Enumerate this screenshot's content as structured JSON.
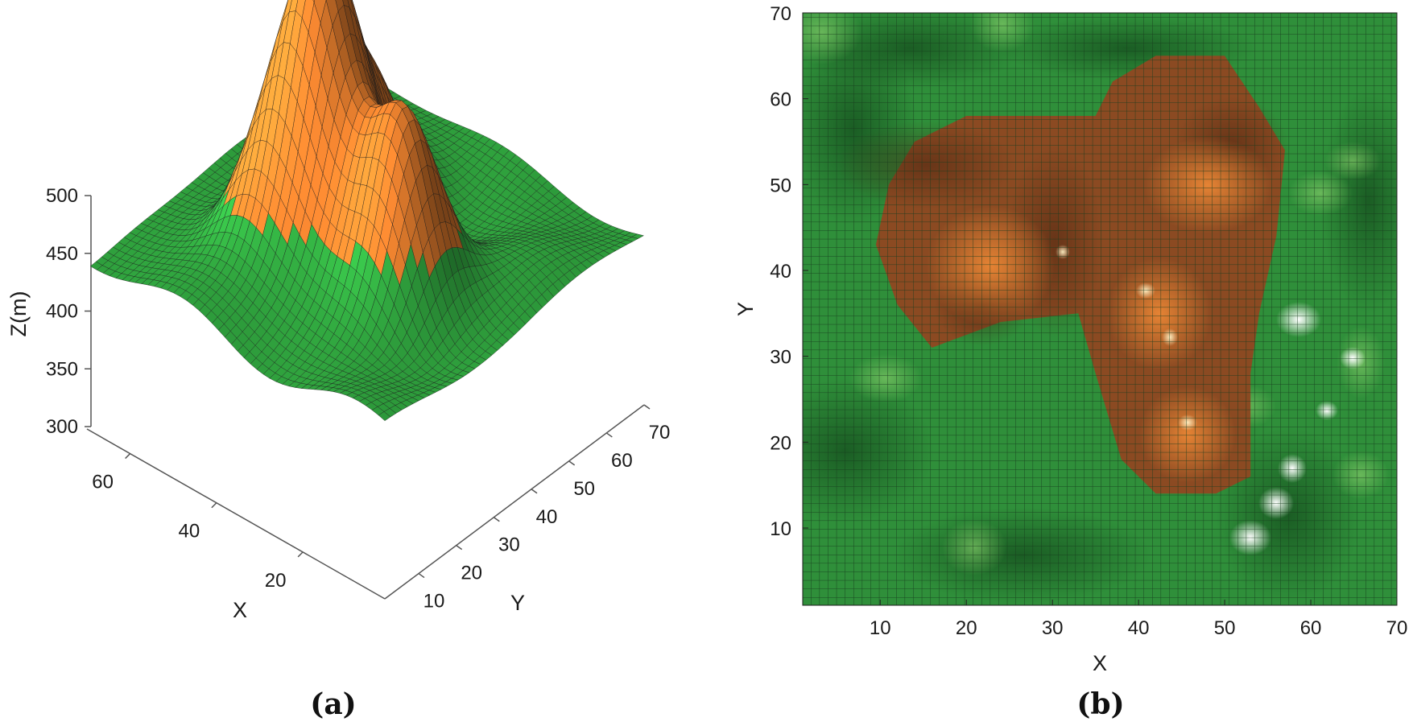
{
  "chart_data": [
    {
      "type": "surface",
      "panel_label": "(a)",
      "xlabel": "X",
      "ylabel": "Y",
      "zlabel": "Z(m)",
      "x_ticks": [
        20,
        40,
        60
      ],
      "y_ticks": [
        10,
        20,
        30,
        40,
        50,
        60,
        70
      ],
      "z_ticks": [
        300,
        350,
        400,
        450,
        500
      ],
      "xlim": [
        1,
        70
      ],
      "ylim": [
        1,
        70
      ],
      "zlim": [
        300,
        500
      ],
      "grid": "mesh",
      "colors": {
        "low": "#2e9e3c",
        "high": "#d9772b",
        "edge": "#1a1a1a"
      },
      "peaks": [
        {
          "x": 42,
          "y": 31,
          "z": 545
        },
        {
          "x": 22,
          "y": 30,
          "z": 445
        },
        {
          "x": 45,
          "y": 46,
          "z": 395
        },
        {
          "x": 48,
          "y": 22,
          "z": 360
        }
      ],
      "color_threshold_z": 355
    },
    {
      "type": "heatmap",
      "panel_label": "(b)",
      "xlabel": "X",
      "ylabel": "Y",
      "x_ticks": [
        10,
        20,
        30,
        40,
        50,
        60,
        70
      ],
      "y_ticks": [
        10,
        20,
        30,
        40,
        50,
        60,
        70
      ],
      "xlim": [
        1,
        70
      ],
      "ylim": [
        1,
        70
      ],
      "grid": "cell",
      "colors": {
        "low": "#2e9e3c",
        "high": "#d9772b",
        "highlight": "#ffffff"
      },
      "highlighted_zone_boundary": [
        [
          9.5,
          43
        ],
        [
          11,
          50
        ],
        [
          14,
          55
        ],
        [
          20,
          58
        ],
        [
          35,
          58
        ],
        [
          37,
          62
        ],
        [
          42,
          65
        ],
        [
          50,
          65
        ],
        [
          54,
          59
        ],
        [
          57,
          54
        ],
        [
          56,
          44
        ],
        [
          54,
          35
        ],
        [
          53,
          28
        ],
        [
          53,
          16
        ],
        [
          49,
          14
        ],
        [
          42,
          14
        ],
        [
          38,
          18
        ],
        [
          35,
          28
        ],
        [
          33,
          35
        ],
        [
          24,
          34
        ],
        [
          16,
          31
        ],
        [
          12,
          36
        ]
      ]
    }
  ]
}
